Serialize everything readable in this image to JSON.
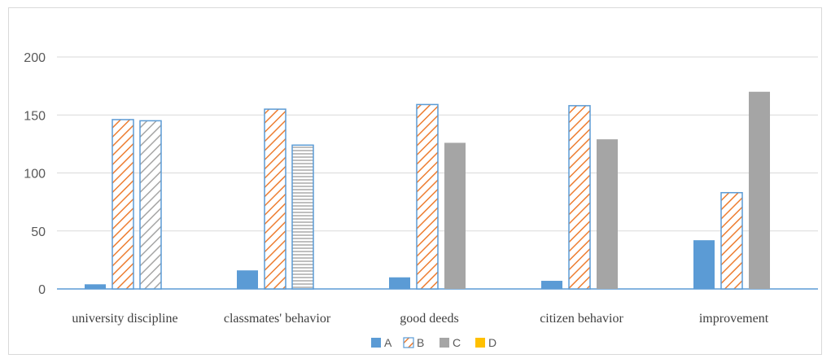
{
  "chart_data": {
    "type": "bar",
    "title": "",
    "xlabel": "",
    "ylabel": "",
    "ylim": [
      0,
      200
    ],
    "yticks": [
      0,
      50,
      100,
      150,
      200
    ],
    "grid": true,
    "legend_position": "bottom",
    "categories": [
      "university discipline",
      "classmates' behavior",
      "good deeds",
      "citizen behavior",
      "improvement"
    ],
    "series": [
      {
        "name": "A",
        "values": [
          4,
          16,
          10,
          7,
          42
        ],
        "color": "#5b9bd5",
        "pattern": [
          "solid",
          "solid",
          "solid",
          "solid",
          "solid"
        ]
      },
      {
        "name": "B",
        "values": [
          146,
          155,
          159,
          158,
          83
        ],
        "color": "#ed7d31",
        "pattern": [
          "diagonal",
          "diagonal",
          "diagonal",
          "diagonal",
          "diagonal"
        ]
      },
      {
        "name": "C",
        "values": [
          145,
          124,
          126,
          129,
          170
        ],
        "color": "#a5a5a5",
        "pattern": [
          "diagonal-gray",
          "horizontal",
          "solid",
          "solid",
          "solid"
        ]
      },
      {
        "name": "D",
        "values": [
          0,
          0,
          0,
          0,
          0
        ],
        "color": "#ffc000",
        "pattern": [
          "solid",
          "solid",
          "solid",
          "solid",
          "solid"
        ]
      }
    ]
  }
}
